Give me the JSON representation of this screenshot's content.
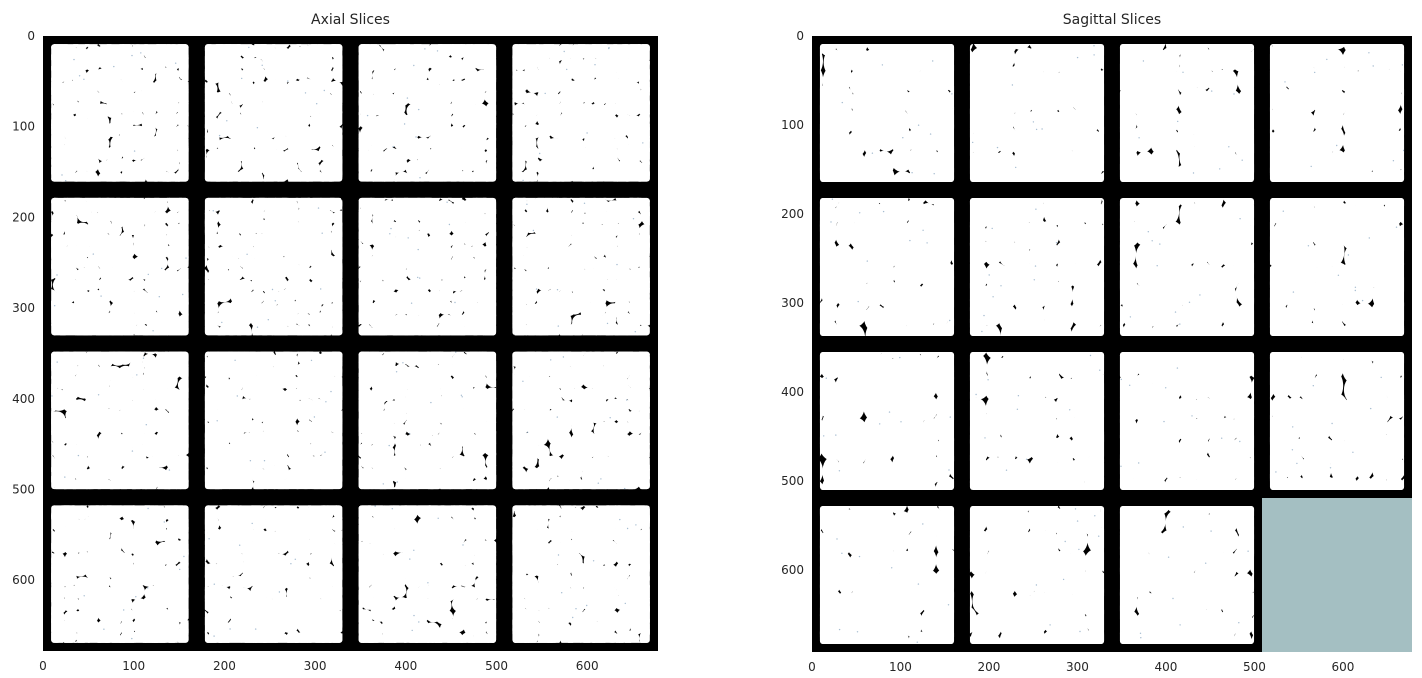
{
  "figure": {
    "background": "#ffffff",
    "text_color": "#262626"
  },
  "colors": {
    "pore": "#000000",
    "grain": "#ffffff",
    "grain_edge_tint": "#6a8fb0",
    "empty_tile": "#a4bfc2"
  },
  "chart_data": [
    {
      "type": "heatmap",
      "title": "Axial Slices",
      "xlabel": "",
      "ylabel": "",
      "xlim": [
        0,
        678
      ],
      "ylim": [
        678,
        0
      ],
      "xticks": [
        "0",
        "100",
        "200",
        "300",
        "400",
        "500",
        "600"
      ],
      "yticks": [
        "0",
        "100",
        "200",
        "300",
        "400",
        "500",
        "600"
      ],
      "tick_values": [
        0,
        100,
        200,
        300,
        400,
        500,
        600
      ],
      "grid": false,
      "montage": {
        "rows": 4,
        "cols": 4,
        "tile_size": 169.5,
        "frame": 9,
        "filled_tiles": 16,
        "empty_tiles": 0
      },
      "tile_content": "binary segmented slice: white grains, black pore space",
      "seed": 11
    },
    {
      "type": "heatmap",
      "title": "Sagittal Slices",
      "xlabel": "",
      "ylabel": "",
      "xlim": [
        0,
        678
      ],
      "ylim": [
        692,
        0
      ],
      "xticks": [
        "0",
        "100",
        "200",
        "300",
        "400",
        "500",
        "600"
      ],
      "yticks": [
        "0",
        "100",
        "200",
        "300",
        "400",
        "500",
        "600"
      ],
      "tick_values": [
        0,
        100,
        200,
        300,
        400,
        500,
        600
      ],
      "grid": false,
      "montage": {
        "rows": 4,
        "cols": 4,
        "tile_width": 169.5,
        "tile_height": 173,
        "frame": 9,
        "filled_tiles": 15,
        "empty_tiles": 1
      },
      "tile_content": "binary segmented slice: white elongated grains, black pore space",
      "seed": 37
    }
  ]
}
